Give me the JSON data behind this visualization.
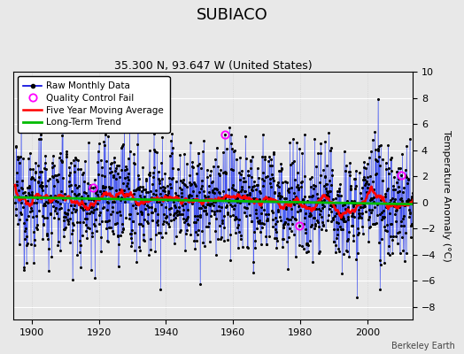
{
  "title": "SUBIACO",
  "subtitle": "35.300 N, 93.647 W (United States)",
  "ylabel": "Temperature Anomaly (°C)",
  "attribution": "Berkeley Earth",
  "year_start": 1895,
  "year_end": 2013,
  "ylim": [
    -9,
    10
  ],
  "yticks": [
    -8,
    -6,
    -4,
    -2,
    0,
    2,
    4,
    6,
    8,
    10
  ],
  "xticks": [
    1900,
    1920,
    1940,
    1960,
    1980,
    2000
  ],
  "raw_color": "#0000dd",
  "raw_line_color": "#4466ff",
  "ma_color": "#ff0000",
  "trend_color": "#00bb00",
  "qc_color": "#ff00ff",
  "background_color": "#e8e8e8",
  "grid_color": "#ffffff",
  "figsize": [
    5.24,
    4.0
  ],
  "dpi": 100,
  "seed": 12345,
  "noise_std": 2.2,
  "qc_points": [
    [
      1957,
      6,
      5.2
    ],
    [
      1918,
      3,
      1.1
    ],
    [
      1979,
      8,
      -1.8
    ],
    [
      2010,
      2,
      2.1
    ]
  ]
}
